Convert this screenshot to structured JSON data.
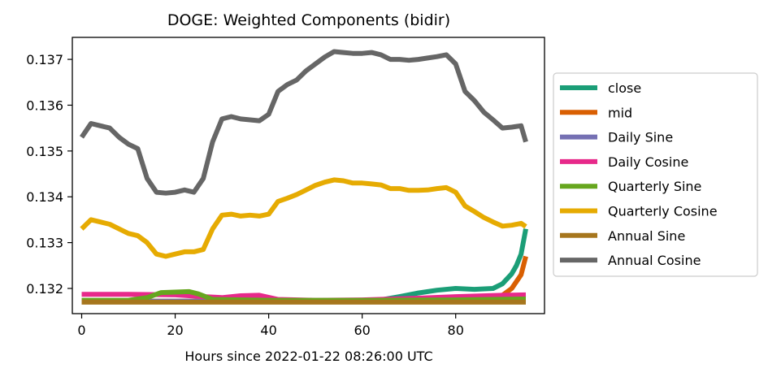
{
  "chart_data": {
    "type": "line",
    "title": "DOGE: Weighted Components (bidir)",
    "xlabel": "Hours since 2022-01-22 08:26:00 UTC",
    "ylabel": "",
    "xlim": [
      -2,
      99
    ],
    "ylim": [
      0.13145,
      0.13748
    ],
    "xticks": [
      0,
      20,
      40,
      60,
      80
    ],
    "yticks": [
      0.132,
      0.133,
      0.134,
      0.135,
      0.136,
      0.137
    ],
    "ytick_labels": [
      "0.132",
      "0.133",
      "0.134",
      "0.135",
      "0.136",
      "0.137"
    ],
    "grid": false,
    "legend_placement": "outside-right",
    "series": [
      {
        "name": "close",
        "color": "#1b9e77",
        "x": [
          0,
          10,
          20,
          30,
          40,
          50,
          60,
          64,
          68,
          72,
          76,
          80,
          84,
          88,
          90,
          92,
          93,
          94,
          95
        ],
        "y": [
          0.13172,
          0.13172,
          0.13172,
          0.13172,
          0.13173,
          0.13173,
          0.13173,
          0.13175,
          0.13182,
          0.1319,
          0.13196,
          0.132,
          0.13198,
          0.132,
          0.1321,
          0.13232,
          0.1325,
          0.13275,
          0.1333
        ]
      },
      {
        "name": "mid",
        "color": "#d95f02",
        "x": [
          0,
          10,
          20,
          30,
          40,
          50,
          60,
          70,
          80,
          88,
          90,
          92,
          93,
          94,
          95
        ],
        "y": [
          0.13172,
          0.13172,
          0.13172,
          0.13172,
          0.13172,
          0.13172,
          0.13172,
          0.13173,
          0.13174,
          0.13178,
          0.13185,
          0.132,
          0.13215,
          0.1323,
          0.1327
        ]
      },
      {
        "name": "Daily Sine",
        "color": "#7570b3",
        "x": [
          0,
          20,
          40,
          60,
          80,
          95
        ],
        "y": [
          0.13171,
          0.13172,
          0.13172,
          0.13172,
          0.13172,
          0.13172
        ]
      },
      {
        "name": "Daily Cosine",
        "color": "#e7298a",
        "x": [
          0,
          10,
          20,
          26,
          30,
          34,
          38,
          42,
          50,
          60,
          70,
          80,
          90,
          95
        ],
        "y": [
          0.13187,
          0.13187,
          0.13186,
          0.13182,
          0.1318,
          0.13184,
          0.13185,
          0.13176,
          0.13174,
          0.13175,
          0.13178,
          0.13182,
          0.13185,
          0.13186
        ]
      },
      {
        "name": "Quarterly Sine",
        "color": "#66a61e",
        "x": [
          0,
          10,
          14,
          17,
          20,
          23,
          25,
          28,
          40,
          60,
          80,
          95
        ],
        "y": [
          0.13174,
          0.13174,
          0.1318,
          0.13191,
          0.13192,
          0.13193,
          0.13188,
          0.13176,
          0.13174,
          0.13174,
          0.13175,
          0.13177
        ]
      },
      {
        "name": "Quarterly Cosine",
        "color": "#e6ab02",
        "x": [
          0,
          2,
          4,
          6,
          8,
          10,
          12,
          14,
          16,
          18,
          20,
          22,
          24,
          26,
          28,
          30,
          32,
          34,
          36,
          38,
          40,
          42,
          44,
          46,
          48,
          50,
          52,
          54,
          56,
          58,
          60,
          62,
          64,
          66,
          68,
          70,
          72,
          74,
          76,
          78,
          80,
          82,
          84,
          86,
          88,
          90,
          92,
          94,
          95
        ],
        "y": [
          0.1333,
          0.1335,
          0.13345,
          0.1334,
          0.1333,
          0.1332,
          0.13315,
          0.133,
          0.13275,
          0.1327,
          0.13275,
          0.1328,
          0.1328,
          0.13285,
          0.1333,
          0.1336,
          0.13362,
          0.13358,
          0.1336,
          0.13358,
          0.13362,
          0.1339,
          0.13397,
          0.13405,
          0.13415,
          0.13425,
          0.13432,
          0.13437,
          0.13435,
          0.1343,
          0.1343,
          0.13428,
          0.13426,
          0.13418,
          0.13418,
          0.13414,
          0.13414,
          0.13415,
          0.13418,
          0.1342,
          0.1341,
          0.1338,
          0.13368,
          0.13355,
          0.13345,
          0.13336,
          0.13338,
          0.13342,
          0.13335
        ]
      },
      {
        "name": "Annual Sine",
        "color": "#a6761d",
        "x": [
          0,
          20,
          40,
          60,
          80,
          95
        ],
        "y": [
          0.1317,
          0.1317,
          0.1317,
          0.1317,
          0.1317,
          0.1317
        ]
      },
      {
        "name": "Annual Cosine",
        "color": "#666666",
        "x": [
          0,
          2,
          4,
          6,
          8,
          10,
          12,
          14,
          16,
          18,
          20,
          22,
          24,
          26,
          28,
          30,
          32,
          34,
          36,
          38,
          40,
          42,
          44,
          46,
          48,
          50,
          52,
          54,
          56,
          58,
          60,
          62,
          64,
          66,
          68,
          70,
          72,
          74,
          76,
          78,
          80,
          82,
          84,
          86,
          88,
          90,
          92,
          94,
          95
        ],
        "y": [
          0.1353,
          0.1356,
          0.13555,
          0.1355,
          0.1353,
          0.13515,
          0.13505,
          0.1344,
          0.1341,
          0.13408,
          0.1341,
          0.13415,
          0.1341,
          0.1344,
          0.1352,
          0.1357,
          0.13575,
          0.1357,
          0.13568,
          0.13566,
          0.1358,
          0.1363,
          0.13645,
          0.13655,
          0.13675,
          0.1369,
          0.13705,
          0.13717,
          0.13715,
          0.13713,
          0.13713,
          0.13715,
          0.1371,
          0.137,
          0.137,
          0.13698,
          0.137,
          0.13703,
          0.13706,
          0.1371,
          0.1369,
          0.1363,
          0.1361,
          0.13585,
          0.13568,
          0.1355,
          0.13552,
          0.13555,
          0.1352
        ]
      }
    ]
  }
}
